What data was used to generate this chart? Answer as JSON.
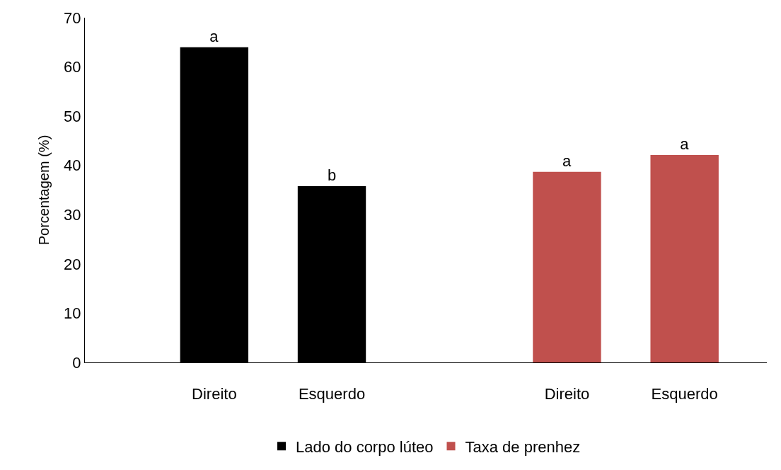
{
  "chart_data": {
    "type": "bar",
    "ylabel": "Porcentagem (%)",
    "categories": [
      "Direito",
      "Esquerdo",
      null,
      "Direito",
      "Esquerdo"
    ],
    "series": [
      {
        "name": "Lado do corpo lúteo",
        "color": "#000000",
        "values": [
          64,
          35.8,
          null,
          null,
          null
        ],
        "value_labels": [
          "a",
          "b",
          null,
          null,
          null
        ]
      },
      {
        "name": "Taxa de prenhez",
        "color": "#c0504d",
        "values": [
          null,
          null,
          null,
          38.7,
          42.1
        ],
        "value_labels": [
          null,
          null,
          null,
          "a",
          "a"
        ]
      }
    ],
    "ylim": [
      0,
      70
    ],
    "yticks": [
      0,
      10,
      20,
      30,
      40,
      50,
      60,
      70
    ],
    "legend": "bottom"
  }
}
